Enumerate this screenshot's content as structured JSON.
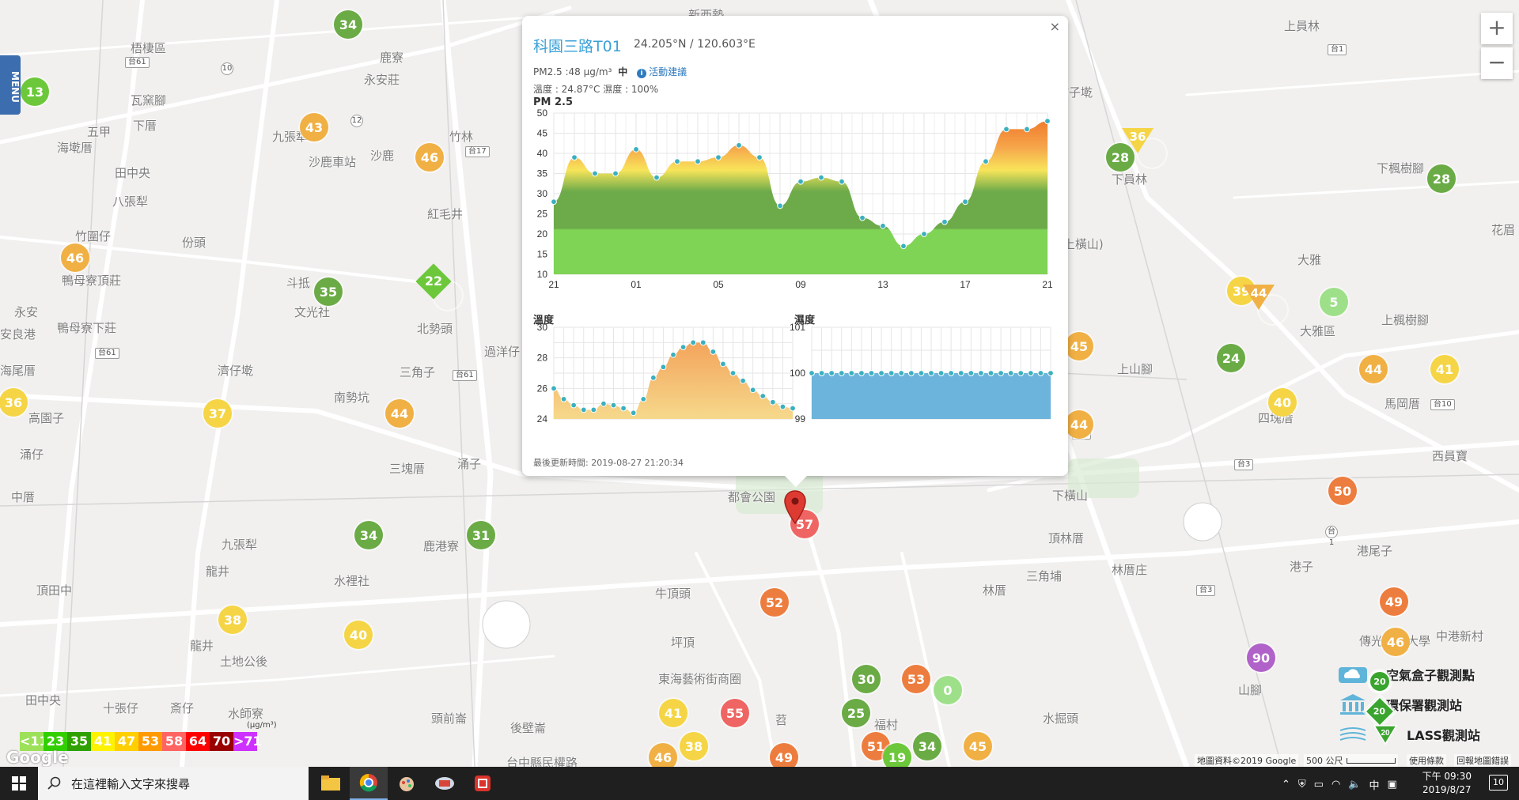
{
  "menu_label": "MENU",
  "zoom": {
    "in": "+",
    "out": "−"
  },
  "places": [
    "新西勢",
    "梧棲區",
    "瓦窯腳",
    "五甲",
    "下厝",
    "海墘厝",
    "田中央",
    "八張犁",
    "竹圍仔",
    "份頭",
    "鴨母寮頂莊",
    "永安",
    "鴨母寮下莊",
    "安良港",
    "海尾厝",
    "濟仔墘",
    "南勢坑",
    "高園子",
    "涌仔",
    "中厝",
    "九張犁",
    "龍井",
    "頂田中",
    "水裡社",
    "鹿港寮",
    "三塊厝",
    "涌子",
    "田中央",
    "十張仔",
    "斎仔",
    "水師寮",
    "頭前崙",
    "後壁崙",
    "龍井",
    "土地公後",
    "竹林",
    "紅毛井",
    "北勢頭",
    "三角子",
    "過洋仔",
    "斗抵",
    "文光社",
    "鹿寮",
    "永安莊",
    "九張犁",
    "沙鹿",
    "沙鹿車站",
    "埔子墘",
    "上員林",
    "下員林",
    "下楓樹腳",
    "花眉",
    "鹽山(上橫山)",
    "大雅區",
    "上楓樹腳",
    "馬岡厝",
    "西員寶",
    "上山腳",
    "下橫山",
    "頂林厝",
    "林厝庄",
    "三角埔",
    "林厝",
    "港子",
    "港尾子",
    "中港新村",
    "水掘頭",
    "牛頂頭",
    "坪頂",
    "都會公園",
    "東海藝術街商圈",
    "福村",
    "大雅",
    "四塊厝",
    "山腳",
    "傳光科技大學",
    "苕",
    "台中縣民權路",
    "新庄子"
  ],
  "shields": [
    "台61",
    "台61",
    "台17",
    "台61",
    "台1",
    "台10",
    "台1",
    "台3",
    "台3",
    "12",
    "10",
    "台1"
  ],
  "stations": [
    {
      "v": "34",
      "c": "#6aab45"
    },
    {
      "v": "13",
      "c": "#6cc83a"
    },
    {
      "v": "43",
      "c": "#f0b044"
    },
    {
      "v": "46",
      "c": "#f0b044"
    },
    {
      "v": "46",
      "c": "#f0b044"
    },
    {
      "v": "35",
      "c": "#6aab45"
    },
    {
      "v": "22",
      "c": "#6cc83a"
    },
    {
      "v": "36",
      "c": "#f5d545"
    },
    {
      "v": "37",
      "c": "#f5d545"
    },
    {
      "v": "44",
      "c": "#f0b044"
    },
    {
      "v": "34",
      "c": "#6aab45"
    },
    {
      "v": "31",
      "c": "#6aab45"
    },
    {
      "v": "38",
      "c": "#f5d545"
    },
    {
      "v": "40",
      "c": "#f5d545"
    },
    {
      "v": "41",
      "c": "#f5d545"
    },
    {
      "v": "38",
      "c": "#f5d545"
    },
    {
      "v": "55",
      "c": "#ee6563"
    },
    {
      "v": "46",
      "c": "#f0b044"
    },
    {
      "v": "49",
      "c": "#ed7d3e"
    },
    {
      "v": "52",
      "c": "#ed7d3e"
    },
    {
      "v": "57",
      "c": "#ee6563"
    },
    {
      "v": "30",
      "c": "#6aab45"
    },
    {
      "v": "25",
      "c": "#6aab45"
    },
    {
      "v": "53",
      "c": "#ed7d3e"
    },
    {
      "v": "0",
      "c": "#9ee08a"
    },
    {
      "v": "51",
      "c": "#ed7d3e"
    },
    {
      "v": "19",
      "c": "#6cc83a"
    },
    {
      "v": "34",
      "c": "#6aab45"
    },
    {
      "v": "45",
      "c": "#f0b044"
    },
    {
      "v": "28",
      "c": "#6aab45"
    },
    {
      "v": "36",
      "c": "#f5d545"
    },
    {
      "v": "28",
      "c": "#6aab45"
    },
    {
      "v": "39",
      "c": "#f5d545"
    },
    {
      "v": "44",
      "c": "#f0b044"
    },
    {
      "v": "5",
      "c": "#9ee08a"
    },
    {
      "v": "24",
      "c": "#6aab45"
    },
    {
      "v": "40",
      "c": "#f5d545"
    },
    {
      "v": "44",
      "c": "#f0b044"
    },
    {
      "v": "41",
      "c": "#f5d545"
    },
    {
      "v": "45",
      "c": "#f0b044"
    },
    {
      "v": "44",
      "c": "#f0b044"
    },
    {
      "v": "50",
      "c": "#ed7d3e"
    },
    {
      "v": "49",
      "c": "#ed7d3e"
    },
    {
      "v": "46",
      "c": "#f0b044"
    },
    {
      "v": "90",
      "c": "#b062c9"
    },
    {
      "v": "20",
      "c": "#6cc83a"
    },
    {
      "v": "20",
      "c": "#6cc83a"
    },
    {
      "v": "20",
      "c": "#6cc83a"
    }
  ],
  "popup": {
    "close": "×",
    "title": "科園三路T01",
    "coords": "24.205°N / 120.603°E",
    "pm_text": "PM2.5 :48 μg/m³",
    "pm_level": "中",
    "advice_icon": "i",
    "advice": "活動建議",
    "temp_humid": "溫度 : 24.87°C 濕度 : 100%",
    "updated": "最後更新時間: 2019-08-27 21:20:34"
  },
  "chart_data": [
    {
      "type": "area",
      "title": "PM 2.5",
      "x": [
        "21",
        "",
        "",
        "",
        "01",
        "",
        "",
        "",
        "05",
        "",
        "",
        "",
        "09",
        "",
        "",
        "",
        "13",
        "",
        "",
        "",
        "17",
        "",
        "",
        "",
        "21"
      ],
      "values": [
        28,
        39,
        35,
        35,
        41,
        34,
        38,
        38,
        39,
        42,
        39,
        27,
        33,
        34,
        33,
        24,
        22,
        17,
        20,
        23,
        28,
        38,
        46,
        46,
        48
      ],
      "xticks": [
        "21",
        "01",
        "05",
        "09",
        "13",
        "17",
        "21"
      ],
      "ylim": [
        10,
        50
      ],
      "yticks": [
        10,
        15,
        20,
        25,
        30,
        35,
        40,
        45,
        50
      ]
    },
    {
      "type": "area",
      "title": "溫度",
      "values": [
        26.0,
        25.3,
        24.9,
        24.6,
        24.6,
        25.0,
        24.9,
        24.7,
        24.4,
        25.3,
        26.7,
        27.4,
        28.2,
        28.7,
        29.0,
        29.0,
        28.4,
        27.6,
        27.0,
        26.5,
        25.9,
        25.5,
        25.1,
        24.8,
        24.7
      ],
      "ylim": [
        24,
        30
      ],
      "yticks": [
        24,
        26,
        28,
        30
      ]
    },
    {
      "type": "area",
      "title": "濕度",
      "values": [
        100,
        100,
        100,
        100,
        100,
        100,
        100,
        100,
        100,
        100,
        100,
        100,
        100,
        100,
        100,
        100,
        100,
        100,
        100,
        100,
        100,
        100,
        100,
        100,
        100
      ],
      "ylim": [
        99,
        101
      ],
      "yticks": [
        99,
        100,
        101
      ]
    }
  ],
  "legend": {
    "unit": "(μg/m³)",
    "items": [
      {
        "label": "<11",
        "c": "#9ce159"
      },
      {
        "label": "23",
        "c": "#31cf00"
      },
      {
        "label": "35",
        "c": "#2fa100"
      },
      {
        "label": "41",
        "c": "#fdf200"
      },
      {
        "label": "47",
        "c": "#ffcf00"
      },
      {
        "label": "53",
        "c": "#ff9a00"
      },
      {
        "label": "58",
        "c": "#ff6463"
      },
      {
        "label": "64",
        "c": "#ff0000"
      },
      {
        "label": "70",
        "c": "#990000"
      },
      {
        "label": ">71",
        "c": "#ce30ff"
      }
    ]
  },
  "layer_legend": [
    {
      "label": "空氣盒子觀測點",
      "icon": "cloud-icon",
      "badge": "20"
    },
    {
      "label": "環保署觀測站",
      "icon": "government-building-icon",
      "badge": "20"
    },
    {
      "label": "LASS觀測站",
      "icon": "wind-icon",
      "badge": "20"
    }
  ],
  "map_footer": {
    "google": "Google",
    "data": "地圖資料©2019 Google",
    "scale": "500 公尺",
    "terms": "使用條款",
    "report": "回報地圖錯誤"
  },
  "taskbar": {
    "search_placeholder": "在這裡輸入文字來搜尋",
    "time": "下午 09:30",
    "date": "2019/8/27",
    "ime": "中",
    "notifications": "10"
  }
}
